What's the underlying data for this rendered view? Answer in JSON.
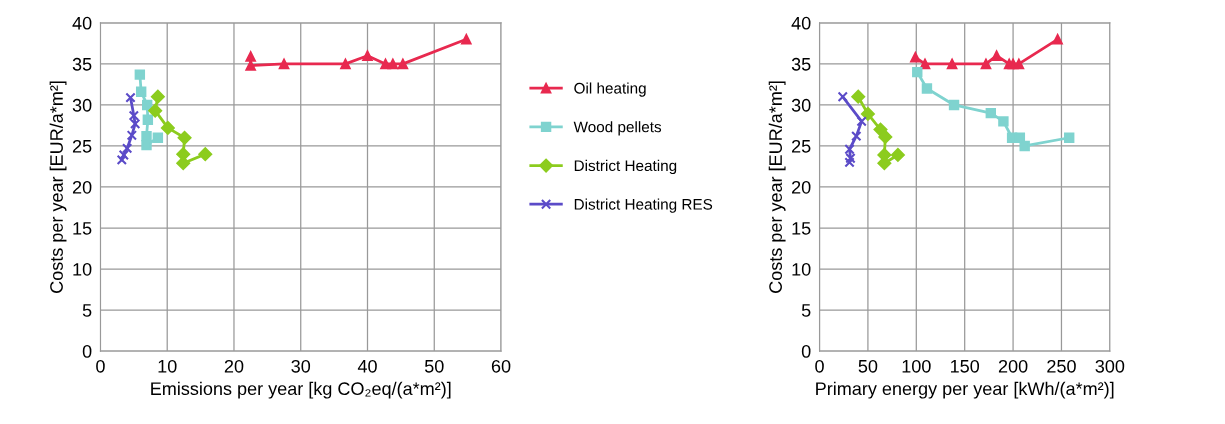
{
  "chart_data": [
    {
      "type": "line",
      "xlabel": "Emissions per year [kg CO₂eq/(a*m²)]",
      "ylabel": "Costs per year [EUR/a*m²]",
      "xlim": [
        0,
        60
      ],
      "xticks": [
        0,
        10,
        20,
        30,
        40,
        50,
        60
      ],
      "ylim": [
        0,
        40
      ],
      "yticks": [
        0,
        5,
        10,
        15,
        20,
        25,
        30,
        35,
        40
      ],
      "grid": true,
      "legend": "right",
      "series": [
        {
          "name": "Oil heating",
          "color": "#e8294f",
          "marker": "triangle",
          "x": [
            22.5,
            22.5,
            27.5,
            36.7,
            40,
            42.7,
            43.8,
            45.3,
            54.8
          ],
          "values": [
            35.9,
            34.8,
            35,
            35,
            36,
            35,
            35,
            35,
            38
          ]
        },
        {
          "name": "Wood pellets",
          "color": "#7fd3cf",
          "marker": "square",
          "x": [
            5.9,
            6.1,
            7,
            7.1,
            6.9,
            6.9,
            8.6
          ],
          "values": [
            33.7,
            31.6,
            30,
            28.2,
            26.2,
            25.1,
            26
          ]
        },
        {
          "name": "District Heating",
          "color": "#8ccc1e",
          "marker": "diamond",
          "x": [
            8.6,
            8.2,
            10.1,
            12.6,
            12.4,
            12.4,
            15.7
          ],
          "values": [
            31,
            29.3,
            27.2,
            26,
            24,
            22.9,
            24
          ]
        },
        {
          "name": "District Heating RES",
          "color": "#5b4bc8",
          "marker": "cross",
          "x": [
            4.5,
            5,
            5.2,
            4.7,
            4,
            3.5,
            3.2
          ],
          "values": [
            30.9,
            28.7,
            27.7,
            26.3,
            24.7,
            23.9,
            23.3
          ]
        }
      ]
    },
    {
      "type": "line",
      "xlabel": "Primary energy per year [kWh/(a*m²)]",
      "ylabel": "Costs per year [EUR/a*m²]",
      "xlim": [
        0,
        300
      ],
      "xticks": [
        0,
        50,
        100,
        150,
        200,
        250,
        300
      ],
      "ylim": [
        0,
        40
      ],
      "yticks": [
        0,
        5,
        10,
        15,
        20,
        25,
        30,
        35,
        40
      ],
      "grid": true,
      "series": [
        {
          "color": "#e8294f",
          "marker": "triangle",
          "x": [
            99,
            109,
            137,
            172,
            183,
            196,
            200,
            206,
            246
          ],
          "values": [
            35.8,
            35,
            35,
            35,
            36,
            35,
            35,
            35,
            38
          ]
        },
        {
          "color": "#7fd3cf",
          "marker": "square",
          "x": [
            101,
            111,
            139,
            177,
            190,
            199,
            207,
            212,
            258
          ],
          "values": [
            34,
            32,
            30,
            29,
            28,
            26,
            26,
            25,
            26
          ]
        },
        {
          "color": "#8ccc1e",
          "marker": "diamond",
          "x": [
            40,
            50,
            63,
            68,
            67,
            67,
            81
          ],
          "values": [
            31,
            28.9,
            27,
            26.1,
            23.9,
            22.9,
            23.9
          ]
        },
        {
          "color": "#5b4bc8",
          "marker": "cross",
          "x": [
            24,
            43.5,
            38,
            31,
            32,
            31
          ],
          "values": [
            31,
            28,
            26.2,
            24.6,
            23.5,
            23
          ]
        }
      ]
    }
  ]
}
